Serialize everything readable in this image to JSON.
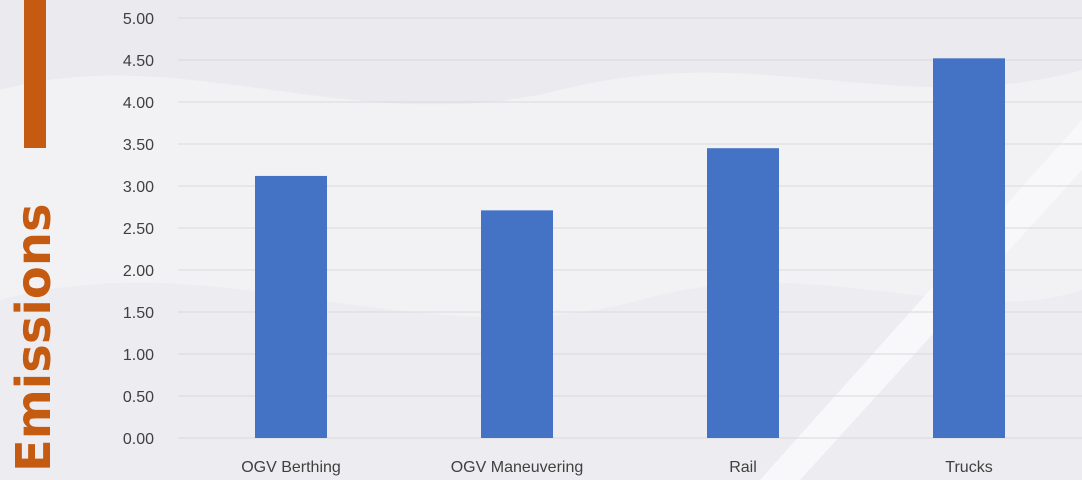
{
  "chart_data": {
    "type": "bar",
    "title": "",
    "xlabel": "",
    "ylabel": "Emissions",
    "categories": [
      "OGV Berthing",
      "OGV Maneuvering",
      "Rail",
      "Trucks"
    ],
    "values": [
      3.12,
      2.71,
      3.45,
      4.52
    ],
    "ylim": [
      0,
      5
    ],
    "yticks": [
      "0.00",
      "0.50",
      "1.00",
      "1.50",
      "2.00",
      "2.50",
      "3.00",
      "3.50",
      "4.00",
      "4.50",
      "5.00"
    ],
    "grid": true,
    "legend": "none",
    "colors": {
      "bar": "#4472c4",
      "accent": "#c55a11",
      "grid": "#d9d9d9"
    }
  }
}
